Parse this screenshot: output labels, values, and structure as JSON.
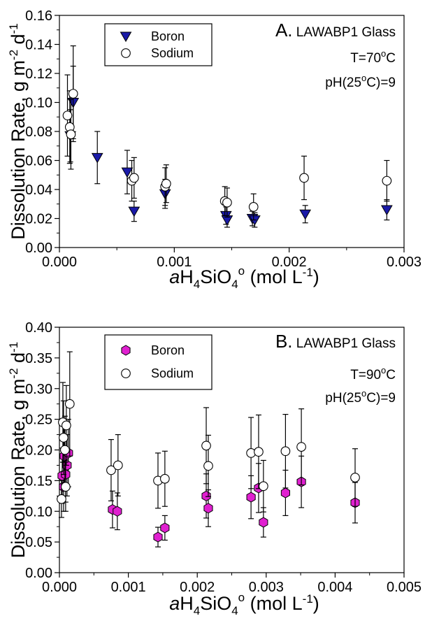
{
  "chart_data": [
    {
      "type": "scatter",
      "panel_label": "A.",
      "panel_title": "LAWABP1 Glass",
      "temperature": {
        "prefix": "T=70",
        "sup": "o",
        "suffix": "C"
      },
      "ph": {
        "prefix": "pH(25",
        "sup": "o",
        "suffix": "C)=9"
      },
      "ylabel": {
        "main": "Dissolution Rate, g m",
        "sup1": "-2",
        "mid": " d",
        "sup2": "-1"
      },
      "xlabel": {
        "italic": "a",
        "h": "H",
        "sub1": "4",
        "si": "SiO",
        "sub2": "4",
        "sup": "o",
        "units": " (mol L",
        "sup2": "-1",
        "close": ")"
      },
      "xlim": [
        0,
        0.003
      ],
      "ylim": [
        0,
        0.16
      ],
      "xticks": [
        "0.000",
        "0.001",
        "0.002",
        "0.003"
      ],
      "xtick_values": [
        0,
        0.001,
        0.002,
        0.003
      ],
      "yticks": [
        "0.00",
        "0.02",
        "0.04",
        "0.06",
        "0.08",
        "0.10",
        "0.12",
        "0.14",
        "0.16"
      ],
      "ytick_values": [
        0,
        0.02,
        0.04,
        0.06,
        0.08,
        0.1,
        0.12,
        0.14,
        0.16
      ],
      "legend": "top-left",
      "series": [
        {
          "name": "Boron",
          "marker": "triangle-down",
          "color": "#1a1aa8",
          "points": [
            {
              "x": 9.5e-05,
              "y": 0.077,
              "err": 0.018
            },
            {
              "x": 0.00012,
              "y": 0.1,
              "err": 0.025
            },
            {
              "x": 0.00033,
              "y": 0.062,
              "err": 0.018
            },
            {
              "x": 0.00059,
              "y": 0.052,
              "err": 0.015
            },
            {
              "x": 0.00065,
              "y": 0.025,
              "err": 0.007
            },
            {
              "x": 0.00092,
              "y": 0.037,
              "err": 0.01
            },
            {
              "x": 0.00145,
              "y": 0.022,
              "err": 0.006
            },
            {
              "x": 0.00146,
              "y": 0.019,
              "err": 0.005
            },
            {
              "x": 0.00168,
              "y": 0.02,
              "err": 0.005
            },
            {
              "x": 0.0017,
              "y": 0.019,
              "err": 0.005
            },
            {
              "x": 0.00214,
              "y": 0.023,
              "err": 0.006
            },
            {
              "x": 0.00285,
              "y": 0.026,
              "err": 0.007
            }
          ]
        },
        {
          "name": "Sodium",
          "marker": "circle",
          "color": "#ffffff",
          "points": [
            {
              "x": 7e-05,
              "y": 0.091,
              "err": 0.028
            },
            {
              "x": 9e-05,
              "y": 0.083,
              "err": 0.025
            },
            {
              "x": 0.0001,
              "y": 0.078,
              "err": 0.024
            },
            {
              "x": 0.00012,
              "y": 0.106,
              "err": 0.033
            },
            {
              "x": 0.00063,
              "y": 0.046,
              "err": 0.014
            },
            {
              "x": 0.00065,
              "y": 0.048,
              "err": 0.014
            },
            {
              "x": 0.00092,
              "y": 0.042,
              "err": 0.013
            },
            {
              "x": 0.00093,
              "y": 0.044,
              "err": 0.013
            },
            {
              "x": 0.00144,
              "y": 0.032,
              "err": 0.01
            },
            {
              "x": 0.00146,
              "y": 0.031,
              "err": 0.01
            },
            {
              "x": 0.00169,
              "y": 0.028,
              "err": 0.009
            },
            {
              "x": 0.00213,
              "y": 0.048,
              "err": 0.015
            },
            {
              "x": 0.00285,
              "y": 0.046,
              "err": 0.014
            }
          ]
        }
      ]
    },
    {
      "type": "scatter",
      "panel_label": "B.",
      "panel_title": "LAWABP1 Glass",
      "temperature": {
        "prefix": "T=90",
        "sup": "o",
        "suffix": "C"
      },
      "ph": {
        "prefix": "pH(25",
        "sup": "o",
        "suffix": "C)=9"
      },
      "ylabel": {
        "main": "Dissolution Rate, g m",
        "sup1": "-2",
        "mid": " d",
        "sup2": "-1"
      },
      "xlabel": {
        "italic": "a",
        "h": "H",
        "sub1": "4",
        "si": "SiO",
        "sub2": "4",
        "sup": "o",
        "units": " (mol L",
        "sup2": "-1",
        "close": ")"
      },
      "xlim": [
        0,
        0.005
      ],
      "ylim": [
        0,
        0.4
      ],
      "xticks": [
        "0.000",
        "0.001",
        "0.002",
        "0.003",
        "0.004",
        "0.005"
      ],
      "xtick_values": [
        0,
        0.001,
        0.002,
        0.003,
        0.004,
        0.005
      ],
      "yticks": [
        "0.00",
        "0.05",
        "0.10",
        "0.15",
        "0.20",
        "0.25",
        "0.30",
        "0.35",
        "0.40"
      ],
      "ytick_values": [
        0,
        0.05,
        0.1,
        0.15,
        0.2,
        0.25,
        0.3,
        0.35,
        0.4
      ],
      "legend": "top-left",
      "series": [
        {
          "name": "Boron",
          "marker": "hexagon",
          "color": "#e020d0",
          "points": [
            {
              "x": 4e-05,
              "y": 0.158,
              "err": 0.045
            },
            {
              "x": 6e-05,
              "y": 0.14,
              "err": 0.04
            },
            {
              "x": 7e-05,
              "y": 0.19,
              "err": 0.05
            },
            {
              "x": 9e-05,
              "y": 0.16,
              "err": 0.045
            },
            {
              "x": 0.00011,
              "y": 0.175,
              "err": 0.05
            },
            {
              "x": 0.00013,
              "y": 0.195,
              "err": 0.055
            },
            {
              "x": 0.00077,
              "y": 0.103,
              "err": 0.03
            },
            {
              "x": 0.00084,
              "y": 0.1,
              "err": 0.03
            },
            {
              "x": 0.00143,
              "y": 0.058,
              "err": 0.016
            },
            {
              "x": 0.00153,
              "y": 0.073,
              "err": 0.02
            },
            {
              "x": 0.00213,
              "y": 0.125,
              "err": 0.036
            },
            {
              "x": 0.00216,
              "y": 0.105,
              "err": 0.03
            },
            {
              "x": 0.00278,
              "y": 0.123,
              "err": 0.035
            },
            {
              "x": 0.00289,
              "y": 0.138,
              "err": 0.04
            },
            {
              "x": 0.00296,
              "y": 0.082,
              "err": 0.024
            },
            {
              "x": 0.00328,
              "y": 0.13,
              "err": 0.037
            },
            {
              "x": 0.00351,
              "y": 0.148,
              "err": 0.042
            },
            {
              "x": 0.00429,
              "y": 0.114,
              "err": 0.033
            }
          ]
        },
        {
          "name": "Sodium",
          "marker": "circle",
          "color": "#ffffff",
          "points": [
            {
              "x": 3e-05,
              "y": 0.12,
              "err": 0.03
            },
            {
              "x": 5e-05,
              "y": 0.245,
              "err": 0.065
            },
            {
              "x": 6e-05,
              "y": 0.22,
              "err": 0.06
            },
            {
              "x": 8e-05,
              "y": 0.2,
              "err": 0.055
            },
            {
              "x": 9e-05,
              "y": 0.14,
              "err": 0.04
            },
            {
              "x": 0.0001,
              "y": 0.24,
              "err": 0.065
            },
            {
              "x": 0.00015,
              "y": 0.275,
              "err": 0.085
            },
            {
              "x": 0.00075,
              "y": 0.167,
              "err": 0.05
            },
            {
              "x": 0.00085,
              "y": 0.175,
              "err": 0.05
            },
            {
              "x": 0.00143,
              "y": 0.15,
              "err": 0.045
            },
            {
              "x": 0.00153,
              "y": 0.153,
              "err": 0.045
            },
            {
              "x": 0.00213,
              "y": 0.207,
              "err": 0.062
            },
            {
              "x": 0.00216,
              "y": 0.174,
              "err": 0.05
            },
            {
              "x": 0.00278,
              "y": 0.195,
              "err": 0.058
            },
            {
              "x": 0.00289,
              "y": 0.197,
              "err": 0.06
            },
            {
              "x": 0.00296,
              "y": 0.141,
              "err": 0.042
            },
            {
              "x": 0.00328,
              "y": 0.198,
              "err": 0.06
            },
            {
              "x": 0.00351,
              "y": 0.205,
              "err": 0.062
            },
            {
              "x": 0.00429,
              "y": 0.155,
              "err": 0.047
            }
          ]
        }
      ]
    }
  ]
}
